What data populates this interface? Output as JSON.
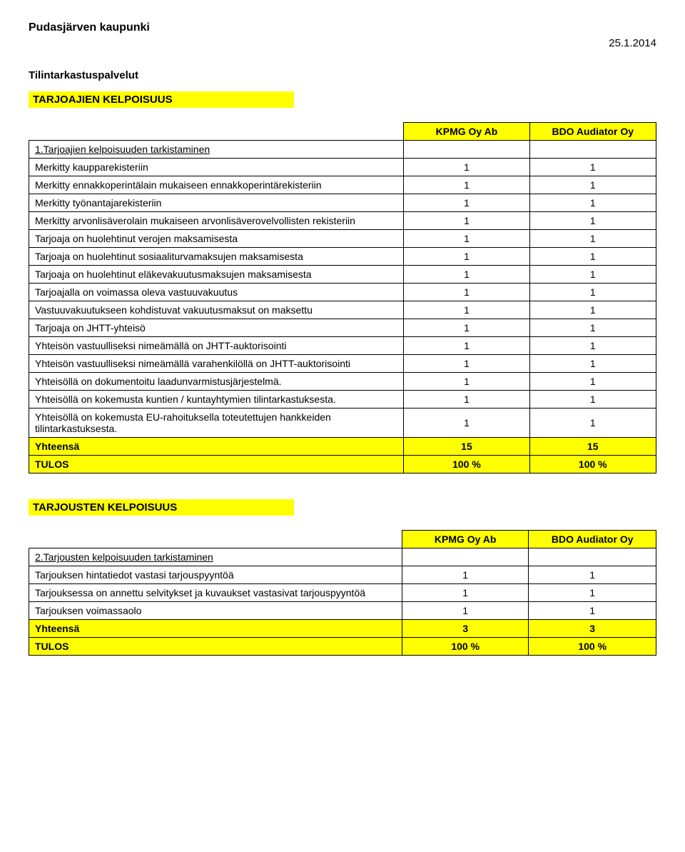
{
  "header": {
    "org": "Pudasjärven kaupunki",
    "date": "25.1.2014",
    "subtitle": "Tilintarkastuspalvelut"
  },
  "colors": {
    "highlight": "#ffff00",
    "border": "#000000",
    "text": "#000000"
  },
  "table1": {
    "section_title": "TARJOAJIEN KELPOISUUS",
    "columns": [
      "KPMG Oy Ab",
      "BDO Audiator Oy"
    ],
    "subheading": "1.Tarjoajien kelpoisuuden tarkistaminen",
    "rows": [
      {
        "label": "Merkitty kaupparekisteriin",
        "v": [
          "1",
          "1"
        ]
      },
      {
        "label": "Merkitty ennakkoperintälain mukaiseen ennakkoperintärekisteriin",
        "v": [
          "1",
          "1"
        ]
      },
      {
        "label": "Merkitty työnantajarekisteriin",
        "v": [
          "1",
          "1"
        ]
      },
      {
        "label": "Merkitty arvonlisäverolain mukaiseen arvonlisäverovelvollisten rekisteriin",
        "v": [
          "1",
          "1"
        ]
      },
      {
        "label": "Tarjoaja on huolehtinut verojen maksamisesta",
        "v": [
          "1",
          "1"
        ]
      },
      {
        "label": "Tarjoaja on huolehtinut sosiaaliturvamaksujen maksamisesta",
        "v": [
          "1",
          "1"
        ]
      },
      {
        "label": "Tarjoaja on huolehtinut eläkevakuutusmaksujen maksamisesta",
        "v": [
          "1",
          "1"
        ]
      },
      {
        "label": "Tarjoajalla on voimassa oleva vastuuvakuutus",
        "v": [
          "1",
          "1"
        ]
      },
      {
        "label": "Vastuuvakuutukseen kohdistuvat vakuutusmaksut on maksettu",
        "v": [
          "1",
          "1"
        ]
      },
      {
        "label": "Tarjoaja on JHTT-yhteisö",
        "v": [
          "1",
          "1"
        ]
      },
      {
        "label": "Yhteisön vastuulliseksi nimeämällä on JHTT-auktorisointi",
        "v": [
          "1",
          "1"
        ]
      },
      {
        "label": "Yhteisön vastuulliseksi nimeämällä varahenkilöllä on JHTT-auktorisointi",
        "v": [
          "1",
          "1"
        ]
      },
      {
        "label": "Yhteisöllä on dokumentoitu laadunvarmistusjärjestelmä.",
        "v": [
          "1",
          "1"
        ]
      },
      {
        "label": "Yhteisöllä on kokemusta kuntien / kuntayhtymien tilintarkastuksesta.",
        "v": [
          "1",
          "1"
        ]
      },
      {
        "label": "Yhteisöllä on kokemusta EU-rahoituksella toteutettujen hankkeiden tilintarkastuksesta.",
        "v": [
          "1",
          "1"
        ]
      }
    ],
    "total_label": "Yhteensä",
    "total": [
      "15",
      "15"
    ],
    "result_label": "TULOS",
    "result": [
      "100 %",
      "100 %"
    ]
  },
  "table2": {
    "section_title": "TARJOUSTEN KELPOISUUS",
    "columns": [
      "KPMG Oy Ab",
      "BDO Audiator Oy"
    ],
    "subheading": "2.Tarjousten kelpoisuuden tarkistaminen",
    "rows": [
      {
        "label": "Tarjouksen hintatiedot vastasi tarjouspyyntöä",
        "v": [
          "1",
          "1"
        ]
      },
      {
        "label": "Tarjouksessa on annettu selvitykset ja kuvaukset vastasivat tarjouspyyntöä",
        "v": [
          "1",
          "1"
        ]
      },
      {
        "label": "Tarjouksen voimassaolo",
        "v": [
          "1",
          "1"
        ]
      }
    ],
    "total_label": "Yhteensä",
    "total": [
      "3",
      "3"
    ],
    "result_label": "TULOS",
    "result": [
      "100 %",
      "100 %"
    ]
  }
}
